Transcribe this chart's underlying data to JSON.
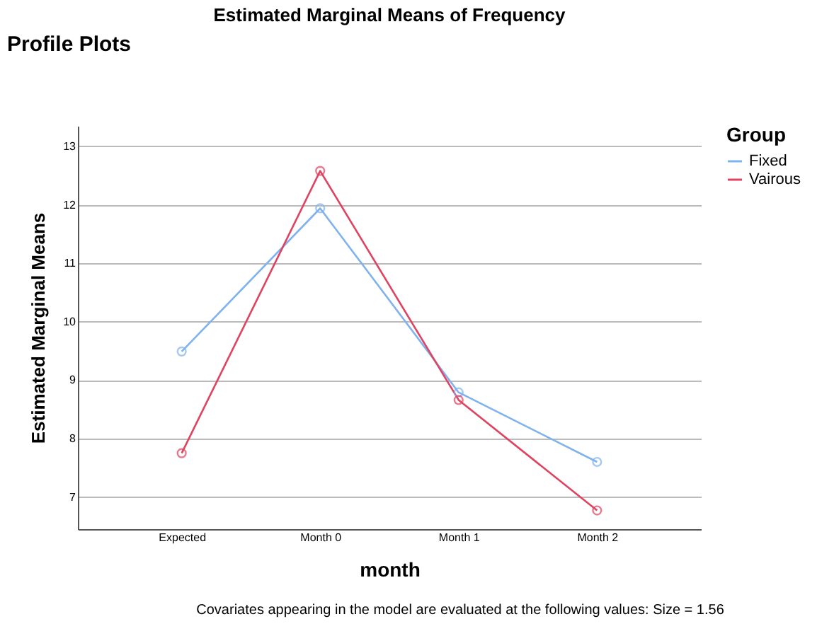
{
  "chart_data": {
    "type": "line",
    "title": "Estimated Marginal Means of Frequency",
    "xlabel": "month",
    "ylabel": "Estimated Marginal Means",
    "legend_title": "Group",
    "categories": [
      "Expected",
      "Month 0",
      "Month 1",
      "Month 2"
    ],
    "series": [
      {
        "name": "Fixed",
        "color": "#7fb2ee",
        "values": [
          9.49,
          11.94,
          8.79,
          7.6
        ]
      },
      {
        "name": "Vairous",
        "color": "#e0435f",
        "values": [
          7.75,
          12.58,
          8.66,
          6.77
        ]
      }
    ],
    "ylim": [
      6.45,
      13.35
    ],
    "yticks": [
      7,
      8,
      9,
      10,
      11,
      12,
      13
    ],
    "grid": "y",
    "legend": "top right",
    "marker": "circle",
    "line_style": "solid",
    "annotations": [
      "Profile Plots",
      "Covariates appearing in the model are evaluated at the following values: Size = 1.56"
    ]
  }
}
